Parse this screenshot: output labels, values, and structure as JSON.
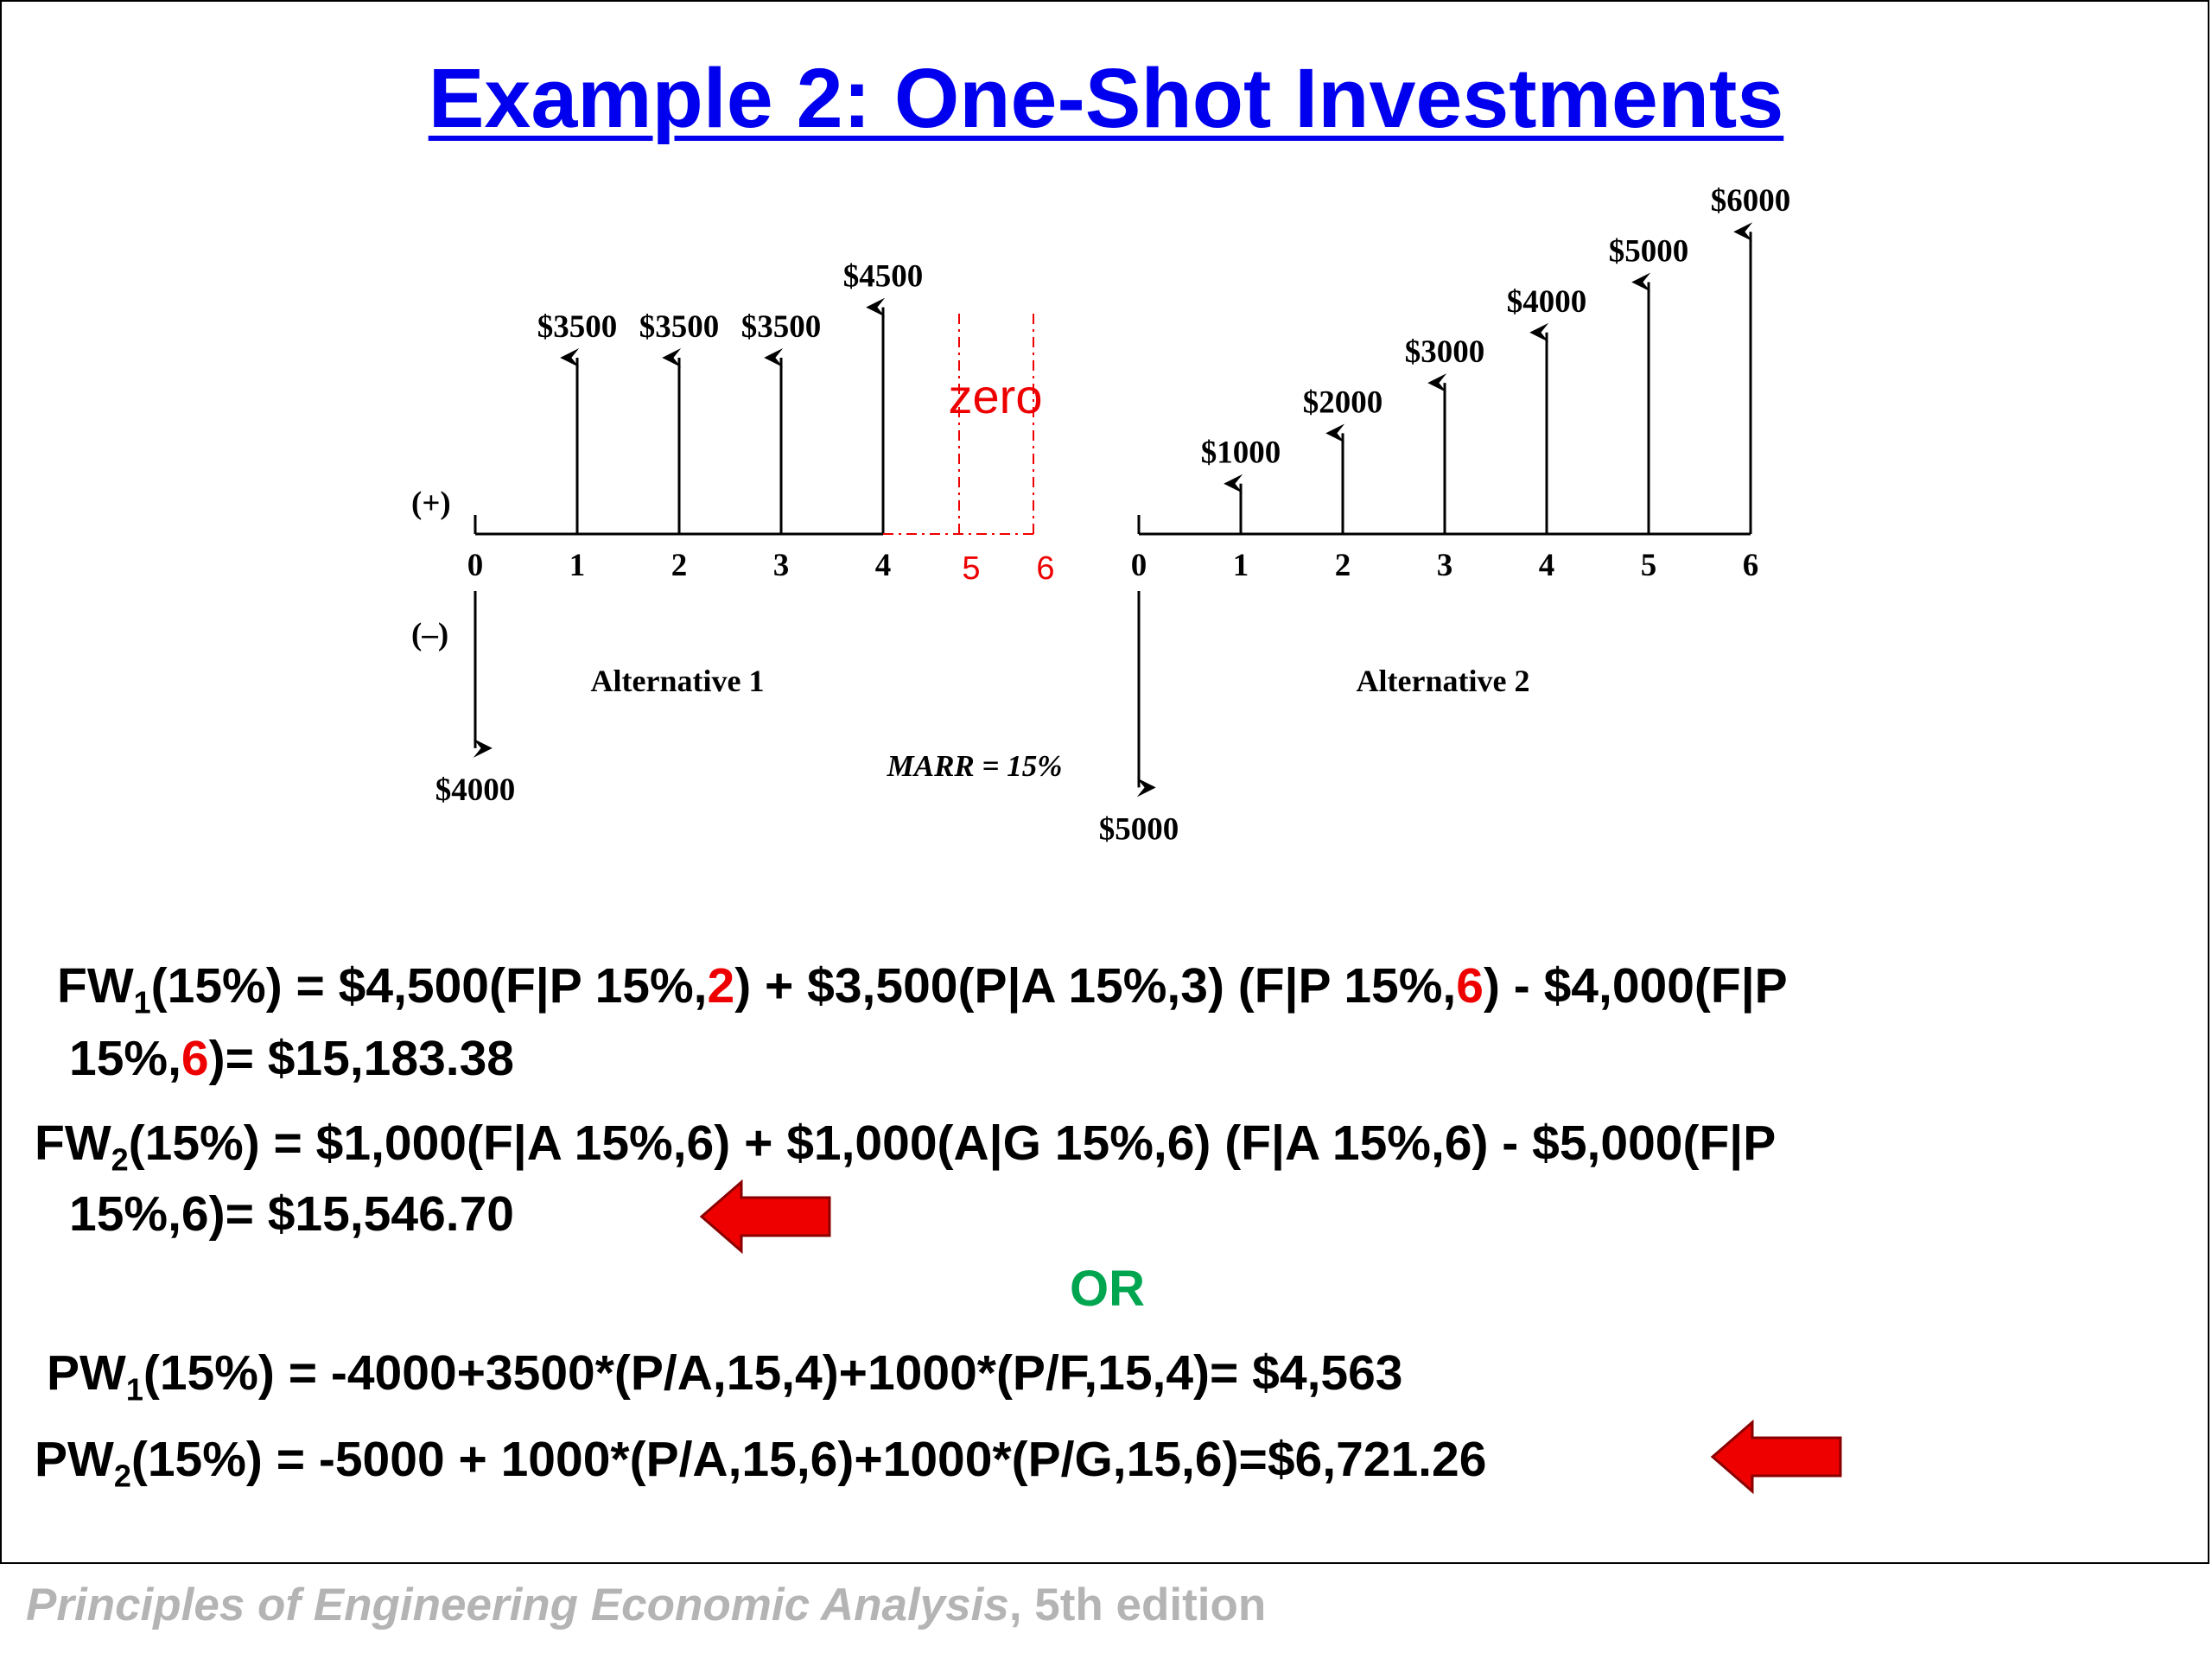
{
  "title": "Example 2: One-Shot Investments",
  "diagram": {
    "alt1": {
      "label": "Alternative 1",
      "ticks": [
        "0",
        "1",
        "2",
        "3",
        "4"
      ],
      "extra_ticks": [
        "5",
        "6"
      ],
      "zero_label": "zero",
      "flows": [
        {
          "period": 0,
          "amount": -4000,
          "label": "$4000"
        },
        {
          "period": 1,
          "amount": 3500,
          "label": "$3500"
        },
        {
          "period": 2,
          "amount": 3500,
          "label": "$3500"
        },
        {
          "period": 3,
          "amount": 3500,
          "label": "$3500"
        },
        {
          "period": 4,
          "amount": 4500,
          "label": "$4500"
        }
      ]
    },
    "alt2": {
      "label": "Alternative 2",
      "ticks": [
        "0",
        "1",
        "2",
        "3",
        "4",
        "5",
        "6"
      ],
      "flows": [
        {
          "period": 0,
          "amount": -5000,
          "label": "$5000"
        },
        {
          "period": 1,
          "amount": 1000,
          "label": "$1000"
        },
        {
          "period": 2,
          "amount": 2000,
          "label": "$2000"
        },
        {
          "period": 3,
          "amount": 3000,
          "label": "$3000"
        },
        {
          "period": 4,
          "amount": 4000,
          "label": "$4000"
        },
        {
          "period": 5,
          "amount": 5000,
          "label": "$5000"
        },
        {
          "period": 6,
          "amount": 6000,
          "label": "$6000"
        }
      ]
    },
    "plus_label": "(+)",
    "minus_label": "(–)",
    "marr": "MARR = 15%"
  },
  "equations": {
    "fw1": {
      "prefix": "FW",
      "sub": "1",
      "a": "(15%) = $4,500(F|P 15%,",
      "r1": "2",
      "b": ") + $3,500(P|A 15%,3) (F|P 15%,",
      "r2": "6",
      "c": ") - $4,000(F|P",
      "d": "15%,",
      "r3": "6",
      "e": ")= $15,183.38"
    },
    "fw2": {
      "prefix": "FW",
      "sub": "2",
      "a": "(15%) = $1,000(F|A 15%,6) + $1,000(A|G 15%,6) (F|A 15%,6) - $5,000(F|P",
      "b": "15%,6)= $15,546.70"
    },
    "or": "OR",
    "pw1": {
      "prefix": "PW",
      "sub": "1",
      "a": "(15%) = -4000+3500*(P/A,15,4)+1000*(P/F,15,4)= $4,563"
    },
    "pw2": {
      "prefix": "PW",
      "sub": "2",
      "a": "(15%) = -5000 + 1000*(P/A,15,6)+1000*(P/G,15,6)=$6,721.26"
    }
  },
  "footer": {
    "book": "Principles of Engineering Economic Analysis",
    "edition": ", 5th edition"
  },
  "colors": {
    "title": "#0000ee",
    "highlight": "#ee0000",
    "or": "#00a550",
    "footer": "#b4b4b4",
    "arrow": "#ee0000"
  }
}
